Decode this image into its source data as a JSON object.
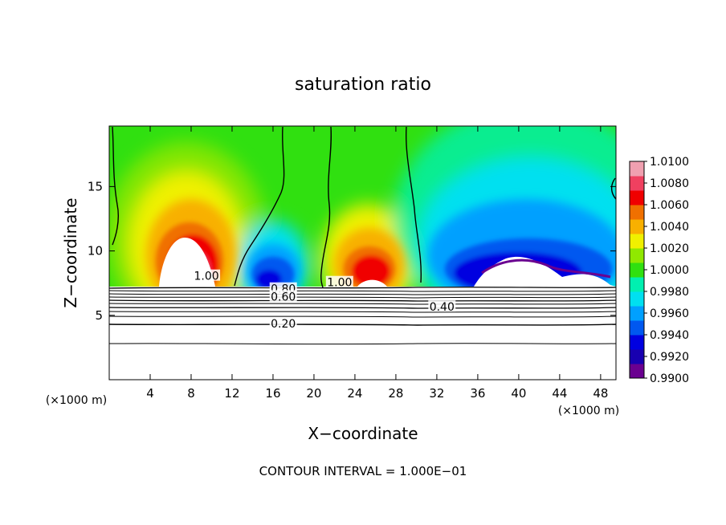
{
  "chart_data": {
    "type": "heatmap",
    "title": "saturation ratio",
    "xlabel": "X−coordinate",
    "ylabel": "Z−coordinate",
    "x_unit": "(×1000 m)",
    "y_unit": "(×1000 m)",
    "x_ticks": [
      4,
      8,
      12,
      16,
      20,
      24,
      28,
      32,
      36,
      40,
      44,
      48
    ],
    "y_ticks": [
      5,
      10,
      15
    ],
    "xlim": [
      0,
      49.5
    ],
    "ylim": [
      0,
      19.7
    ],
    "colorbar": {
      "ticks": [
        "0.9900",
        "0.9920",
        "0.9940",
        "0.9960",
        "0.9980",
        "1.0000",
        "1.0020",
        "1.0040",
        "1.0060",
        "1.0080",
        "1.0100"
      ],
      "colors": [
        "#6a0090",
        "#1800b0",
        "#0000e0",
        "#0058f0",
        "#00a0ff",
        "#00e0f0",
        "#00f0b0",
        "#30e010",
        "#90e800",
        "#f0f000",
        "#f8b000",
        "#f07000",
        "#f00000",
        "#f04060",
        "#f0a0b0"
      ]
    },
    "contour_labels": [
      {
        "text": "1.00",
        "x": 9.5,
        "y": 8.0
      },
      {
        "text": "1.00",
        "x": 22.5,
        "y": 7.5
      },
      {
        "text": "0.80",
        "x": 17.0,
        "y": 7.0
      },
      {
        "text": "0.60",
        "x": 17.0,
        "y": 6.4
      },
      {
        "text": "0.40",
        "x": 32.5,
        "y": 5.6
      },
      {
        "text": "0.20",
        "x": 17.0,
        "y": 4.3
      }
    ],
    "contour_interval_note": "CONTOUR INTERVAL = 1.000E−01"
  }
}
